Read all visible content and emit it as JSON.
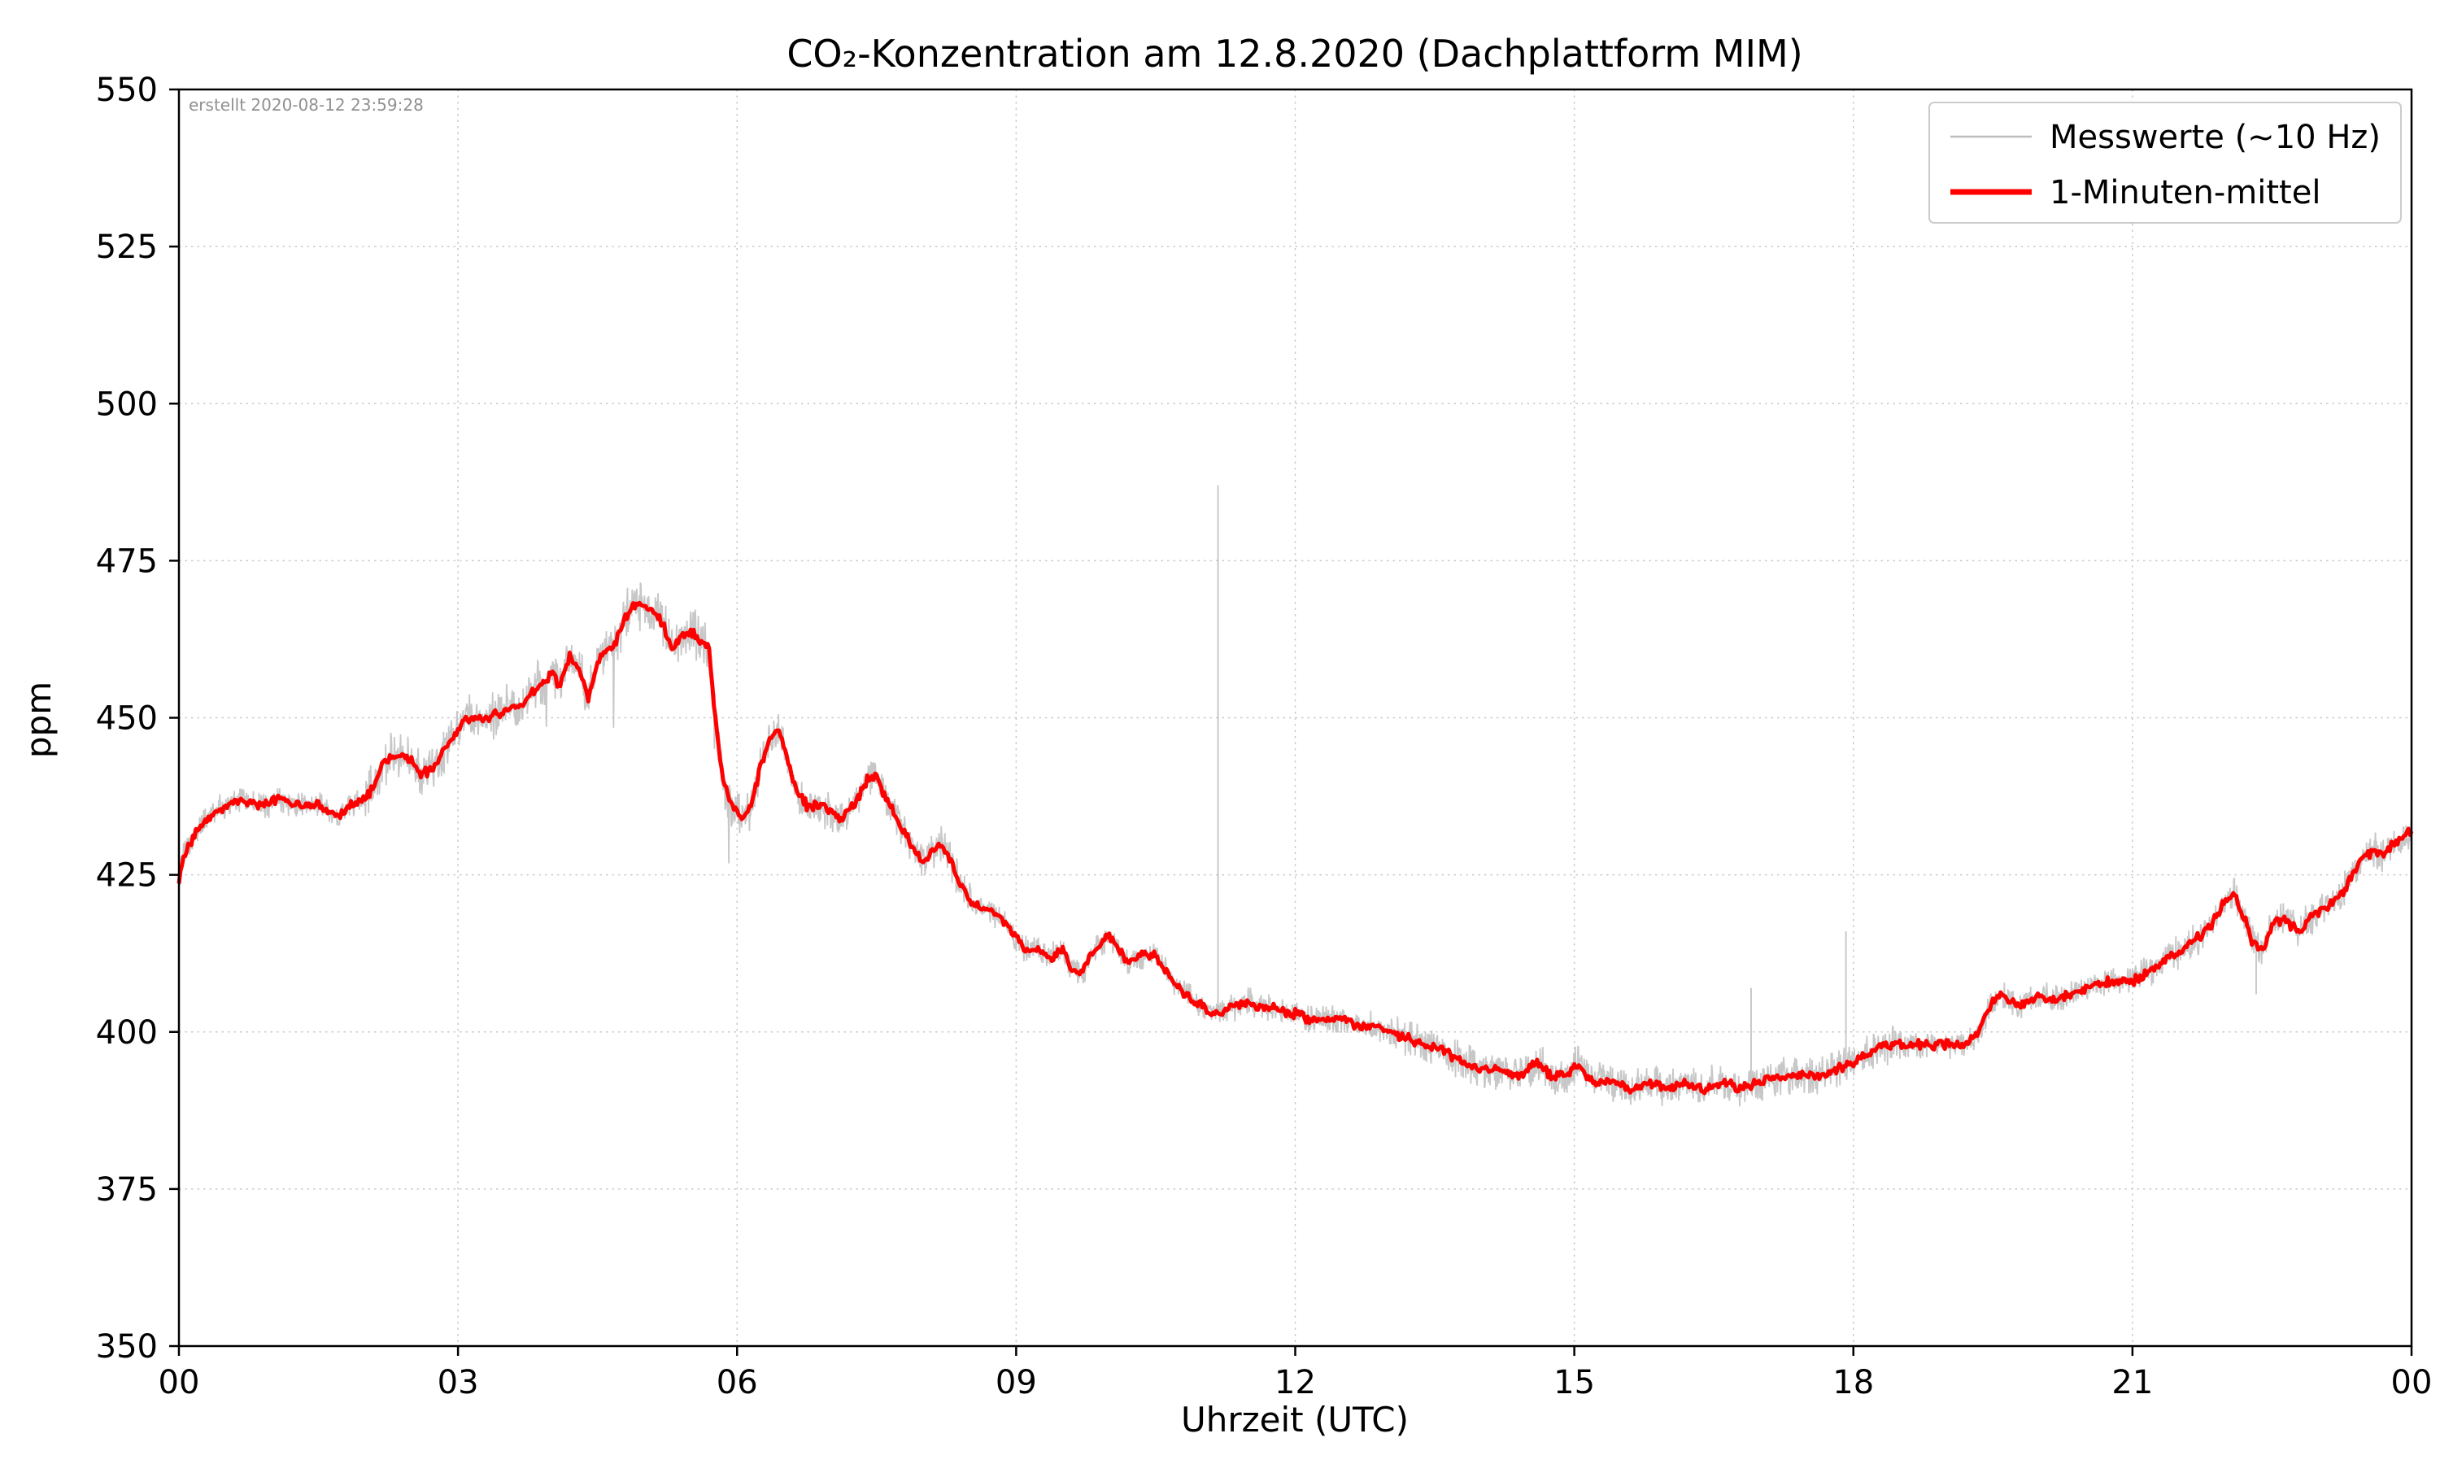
{
  "figure": {
    "title": "CO₂-Konzentration am 12.8.2020 (Dachplattform MIM)",
    "created_stamp": "erstellt 2020-08-12 23:59:28",
    "xlabel": "Uhrzeit (UTC)",
    "ylabel": "ppm",
    "legend": {
      "items": [
        {
          "label": "Messwerte (~10 Hz)",
          "color": "#bdbdbd",
          "line_width": 2.5
        },
        {
          "label": "1-Minuten-mittel",
          "color": "#ff0000",
          "line_width": 7
        }
      ]
    }
  },
  "chart_data": {
    "type": "line",
    "title": "CO₂-Konzentration am 12.8.2020 (Dachplattform MIM)",
    "xlabel": "Uhrzeit (UTC)",
    "ylabel": "ppm",
    "xlim": [
      0,
      24
    ],
    "ylim": [
      350,
      550
    ],
    "grid": "dotted",
    "legend_position": "upper right",
    "xticks": [
      {
        "value": 0,
        "label": "00"
      },
      {
        "value": 3,
        "label": "03"
      },
      {
        "value": 6,
        "label": "06"
      },
      {
        "value": 9,
        "label": "09"
      },
      {
        "value": 12,
        "label": "12"
      },
      {
        "value": 15,
        "label": "15"
      },
      {
        "value": 18,
        "label": "18"
      },
      {
        "value": 21,
        "label": "21"
      },
      {
        "value": 24,
        "label": "00"
      }
    ],
    "yticks": [
      {
        "value": 350,
        "label": "350"
      },
      {
        "value": 375,
        "label": "375"
      },
      {
        "value": 400,
        "label": "400"
      },
      {
        "value": 425,
        "label": "425"
      },
      {
        "value": 450,
        "label": "450"
      },
      {
        "value": 475,
        "label": "475"
      },
      {
        "value": 500,
        "label": "500"
      },
      {
        "value": 525,
        "label": "525"
      },
      {
        "value": 550,
        "label": "550"
      }
    ],
    "series": [
      {
        "name": "1-Minuten-mittel",
        "color": "#ff0000",
        "line_width": 5,
        "points": [
          [
            0.0,
            424
          ],
          [
            0.05,
            428
          ],
          [
            0.15,
            431
          ],
          [
            0.3,
            434
          ],
          [
            0.5,
            436
          ],
          [
            0.7,
            437
          ],
          [
            0.9,
            436
          ],
          [
            1.1,
            437
          ],
          [
            1.3,
            436
          ],
          [
            1.5,
            436
          ],
          [
            1.7,
            434
          ],
          [
            1.85,
            436
          ],
          [
            2.0,
            437
          ],
          [
            2.1,
            439
          ],
          [
            2.2,
            443
          ],
          [
            2.35,
            444
          ],
          [
            2.5,
            443
          ],
          [
            2.6,
            441
          ],
          [
            2.75,
            442
          ],
          [
            2.9,
            446
          ],
          [
            3.0,
            448
          ],
          [
            3.1,
            450
          ],
          [
            3.3,
            450
          ],
          [
            3.5,
            451
          ],
          [
            3.7,
            452
          ],
          [
            3.85,
            455
          ],
          [
            4.0,
            457
          ],
          [
            4.1,
            455
          ],
          [
            4.2,
            460
          ],
          [
            4.3,
            458
          ],
          [
            4.4,
            453
          ],
          [
            4.5,
            459
          ],
          [
            4.6,
            461
          ],
          [
            4.7,
            462
          ],
          [
            4.8,
            466
          ],
          [
            4.9,
            468
          ],
          [
            5.0,
            468
          ],
          [
            5.1,
            467
          ],
          [
            5.2,
            465
          ],
          [
            5.3,
            461
          ],
          [
            5.4,
            463
          ],
          [
            5.5,
            464
          ],
          [
            5.6,
            462
          ],
          [
            5.7,
            461
          ],
          [
            5.75,
            452
          ],
          [
            5.85,
            440
          ],
          [
            5.95,
            436
          ],
          [
            6.05,
            434
          ],
          [
            6.15,
            436
          ],
          [
            6.25,
            442
          ],
          [
            6.35,
            447
          ],
          [
            6.45,
            448
          ],
          [
            6.55,
            443
          ],
          [
            6.65,
            438
          ],
          [
            6.75,
            436
          ],
          [
            6.9,
            436
          ],
          [
            7.0,
            435
          ],
          [
            7.1,
            434
          ],
          [
            7.25,
            436
          ],
          [
            7.4,
            440
          ],
          [
            7.5,
            441
          ],
          [
            7.6,
            437
          ],
          [
            7.75,
            433
          ],
          [
            7.9,
            429
          ],
          [
            8.0,
            427
          ],
          [
            8.1,
            429
          ],
          [
            8.2,
            430
          ],
          [
            8.3,
            427
          ],
          [
            8.4,
            423
          ],
          [
            8.5,
            421
          ],
          [
            8.6,
            420
          ],
          [
            8.75,
            419
          ],
          [
            8.9,
            417
          ],
          [
            9.0,
            415
          ],
          [
            9.1,
            413
          ],
          [
            9.25,
            413
          ],
          [
            9.4,
            412
          ],
          [
            9.5,
            413
          ],
          [
            9.6,
            410
          ],
          [
            9.7,
            409
          ],
          [
            9.8,
            412
          ],
          [
            9.9,
            414
          ],
          [
            10.0,
            415
          ],
          [
            10.1,
            413
          ],
          [
            10.2,
            411
          ],
          [
            10.35,
            412
          ],
          [
            10.5,
            412
          ],
          [
            10.6,
            410
          ],
          [
            10.75,
            407
          ],
          [
            10.9,
            405
          ],
          [
            11.0,
            404
          ],
          [
            11.1,
            403
          ],
          [
            11.2,
            403
          ],
          [
            11.3,
            404
          ],
          [
            11.4,
            404
          ],
          [
            11.5,
            405
          ],
          [
            11.6,
            404
          ],
          [
            11.75,
            404
          ],
          [
            11.9,
            403
          ],
          [
            12.0,
            403
          ],
          [
            12.15,
            402
          ],
          [
            12.3,
            402
          ],
          [
            12.5,
            402
          ],
          [
            12.65,
            401
          ],
          [
            12.8,
            401
          ],
          [
            13.0,
            400
          ],
          [
            13.2,
            399
          ],
          [
            13.4,
            398
          ],
          [
            13.6,
            397
          ],
          [
            13.8,
            395
          ],
          [
            14.0,
            394
          ],
          [
            14.2,
            394
          ],
          [
            14.4,
            393
          ],
          [
            14.6,
            395
          ],
          [
            14.75,
            393
          ],
          [
            14.9,
            393
          ],
          [
            15.05,
            395
          ],
          [
            15.2,
            392
          ],
          [
            15.4,
            392
          ],
          [
            15.6,
            391
          ],
          [
            15.8,
            392
          ],
          [
            16.0,
            391
          ],
          [
            16.2,
            392
          ],
          [
            16.4,
            391
          ],
          [
            16.6,
            392
          ],
          [
            16.8,
            391
          ],
          [
            17.0,
            392
          ],
          [
            17.2,
            393
          ],
          [
            17.4,
            393
          ],
          [
            17.6,
            393
          ],
          [
            17.8,
            394
          ],
          [
            18.0,
            395
          ],
          [
            18.2,
            397
          ],
          [
            18.4,
            398
          ],
          [
            18.6,
            398
          ],
          [
            18.8,
            398
          ],
          [
            19.0,
            398
          ],
          [
            19.2,
            398
          ],
          [
            19.35,
            400
          ],
          [
            19.5,
            405
          ],
          [
            19.6,
            406
          ],
          [
            19.75,
            404
          ],
          [
            19.9,
            405
          ],
          [
            20.0,
            406
          ],
          [
            20.15,
            405
          ],
          [
            20.3,
            406
          ],
          [
            20.5,
            407
          ],
          [
            20.7,
            408
          ],
          [
            20.9,
            408
          ],
          [
            21.0,
            408
          ],
          [
            21.1,
            409
          ],
          [
            21.25,
            410
          ],
          [
            21.4,
            412
          ],
          [
            21.55,
            413
          ],
          [
            21.7,
            415
          ],
          [
            21.85,
            417
          ],
          [
            22.0,
            421
          ],
          [
            22.1,
            422
          ],
          [
            22.2,
            418
          ],
          [
            22.3,
            414
          ],
          [
            22.4,
            413
          ],
          [
            22.5,
            417
          ],
          [
            22.6,
            418
          ],
          [
            22.7,
            417
          ],
          [
            22.8,
            416
          ],
          [
            22.9,
            418
          ],
          [
            23.0,
            419
          ],
          [
            23.1,
            420
          ],
          [
            23.25,
            422
          ],
          [
            23.4,
            426
          ],
          [
            23.5,
            428
          ],
          [
            23.6,
            429
          ],
          [
            23.7,
            428
          ],
          [
            23.8,
            430
          ],
          [
            23.9,
            431
          ],
          [
            24.0,
            432
          ]
        ]
      },
      {
        "name": "Messwerte (~10 Hz)",
        "color": "#bdbdbd",
        "line_width": 1.8,
        "derived": "mean plus high-frequency noise",
        "noise_base_amp": 2.5,
        "noise_regions": [
          {
            "from": 2.0,
            "to": 6.2,
            "amp": 4.5
          },
          {
            "from": 6.2,
            "to": 8.5,
            "amp": 3.5
          },
          {
            "from": 13.0,
            "to": 18.5,
            "amp": 3.5
          },
          {
            "from": 21.0,
            "to": 24.0,
            "amp": 3.0
          }
        ],
        "spikes": [
          {
            "x": 11.17,
            "y": 487
          },
          {
            "x": 16.9,
            "y": 407
          },
          {
            "x": 17.92,
            "y": 416
          },
          {
            "x": 22.33,
            "y": 406
          }
        ]
      }
    ]
  }
}
